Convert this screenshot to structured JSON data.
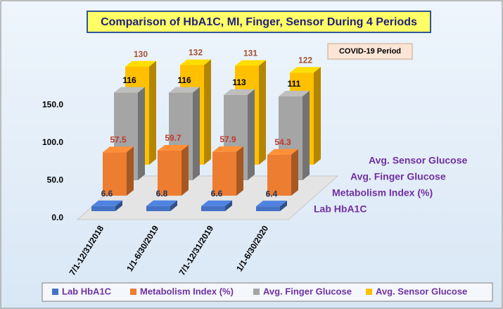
{
  "chart_data": {
    "type": "bar3d",
    "title": "Comparison of HbA1C, MI, Finger, Sensor During 4 Periods",
    "annotation": "COVID-19 Period",
    "categories": [
      "7/1-12/31/2018",
      "1/1-6/30/2019",
      "7/1-12/31/2019",
      "1/1-6/30/2020"
    ],
    "series": [
      {
        "name": "Lab HbA1C",
        "color": "#4472c4",
        "label_color": "#1f3864",
        "values": [
          6.6,
          6.8,
          6.6,
          6.4
        ]
      },
      {
        "name": "Metabolism Index (%)",
        "color": "#ed7d31",
        "label_color": "#c0392b",
        "values": [
          57.5,
          59.7,
          57.9,
          54.3
        ]
      },
      {
        "name": "Avg. Finger Glucose",
        "color": "#a5a5a5",
        "label_color": "#000000",
        "values": [
          116,
          116,
          113,
          111
        ]
      },
      {
        "name": "Avg. Sensor Glucose",
        "color": "#ffc000",
        "label_color": "#a0522d",
        "values": [
          130,
          132,
          131,
          122
        ]
      }
    ],
    "ylim": [
      0,
      180
    ],
    "yticks": [
      {
        "value": 0,
        "label": "0.0"
      },
      {
        "value": 50,
        "label": "50.0"
      },
      {
        "value": 100,
        "label": "100.0"
      },
      {
        "value": 150,
        "label": "150.0"
      }
    ],
    "grid": false,
    "legend": "bottom"
  }
}
